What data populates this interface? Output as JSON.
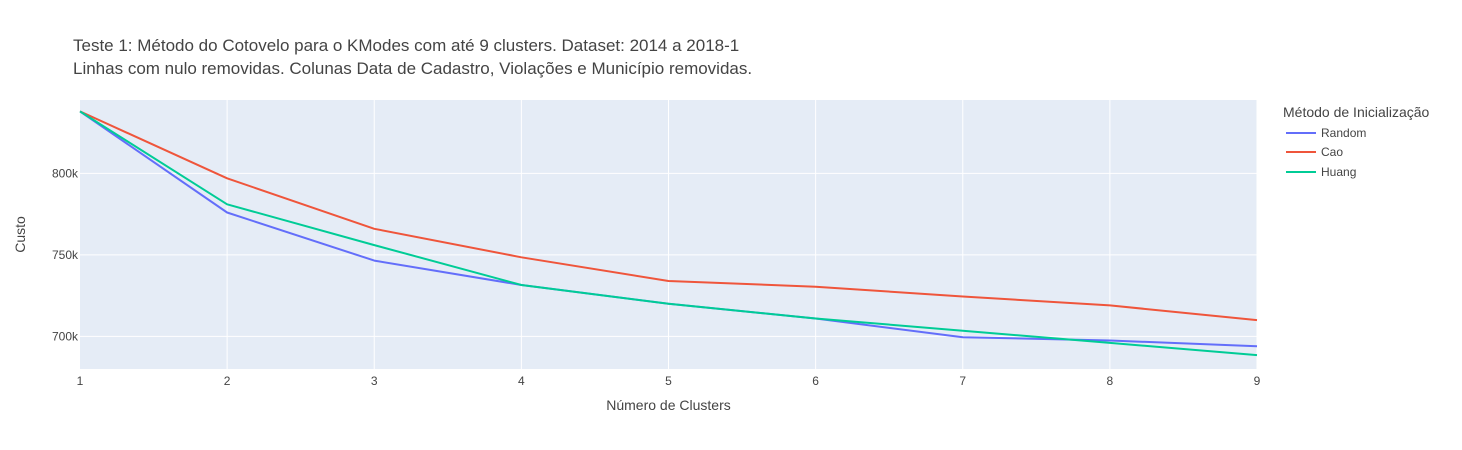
{
  "chart_data": {
    "type": "line",
    "title": "Teste 1: Método do Cotovelo para o KModes com até 9 clusters. Dataset: 2014 a 2018-1",
    "subtitle": "Linhas com nulo removidas. Colunas Data de Cadastro, Violações e Município removidas.",
    "xlabel": "Número de Clusters",
    "ylabel": "Custo",
    "x": [
      1,
      2,
      3,
      4,
      5,
      6,
      7,
      8,
      9
    ],
    "x_tick_labels": [
      "1",
      "2",
      "3",
      "4",
      "5",
      "6",
      "7",
      "8",
      "9"
    ],
    "xlim": [
      1,
      9
    ],
    "ylim": [
      680000,
      845000
    ],
    "y_ticks": [
      700000,
      750000,
      800000
    ],
    "y_tick_labels": [
      "700k",
      "750k",
      "800k"
    ],
    "grid": true,
    "legend_title": "Método de Inicialização",
    "legend_position": "right",
    "series": [
      {
        "name": "Random",
        "color": "#636efa",
        "values": [
          838000,
          776000,
          746500,
          731500,
          720000,
          711000,
          699500,
          697500,
          694000
        ]
      },
      {
        "name": "Cao",
        "color": "#ef553b",
        "values": [
          838000,
          797000,
          766000,
          748500,
          734000,
          730500,
          724500,
          719000,
          710000
        ]
      },
      {
        "name": "Huang",
        "color": "#00cc96",
        "values": [
          838000,
          781000,
          756000,
          731500,
          720000,
          711000,
          703500,
          696000,
          688500
        ]
      }
    ]
  }
}
